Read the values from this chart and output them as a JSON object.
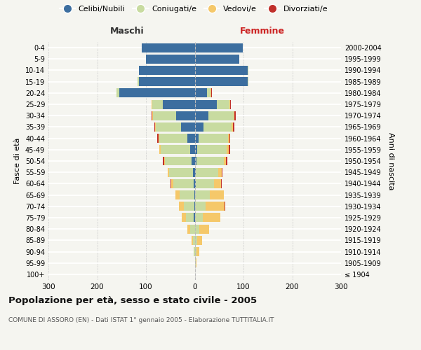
{
  "age_groups": [
    "100+",
    "95-99",
    "90-94",
    "85-89",
    "80-84",
    "75-79",
    "70-74",
    "65-69",
    "60-64",
    "55-59",
    "50-54",
    "45-49",
    "40-44",
    "35-39",
    "30-34",
    "25-29",
    "20-24",
    "15-19",
    "10-14",
    "5-9",
    "0-4"
  ],
  "birth_years": [
    "≤ 1904",
    "1905-1909",
    "1910-1914",
    "1915-1919",
    "1920-1924",
    "1925-1929",
    "1930-1934",
    "1935-1939",
    "1940-1944",
    "1945-1949",
    "1950-1954",
    "1955-1959",
    "1960-1964",
    "1965-1969",
    "1970-1974",
    "1975-1979",
    "1980-1984",
    "1985-1989",
    "1990-1994",
    "1995-1999",
    "2000-2004"
  ],
  "male_celibi": [
    0,
    0,
    0,
    0,
    0,
    2,
    1,
    1,
    2,
    3,
    6,
    10,
    15,
    28,
    38,
    65,
    155,
    115,
    115,
    100,
    108
  ],
  "male_coniugati": [
    0,
    0,
    2,
    4,
    10,
    16,
    22,
    30,
    42,
    50,
    55,
    60,
    58,
    52,
    48,
    22,
    5,
    2,
    0,
    0,
    0
  ],
  "male_vedovi": [
    0,
    0,
    0,
    2,
    5,
    9,
    10,
    8,
    4,
    2,
    2,
    2,
    1,
    1,
    1,
    1,
    0,
    0,
    0,
    0,
    0
  ],
  "male_divorziati": [
    0,
    0,
    0,
    0,
    0,
    0,
    0,
    1,
    1,
    1,
    2,
    1,
    3,
    2,
    2,
    1,
    0,
    0,
    0,
    0,
    0
  ],
  "fem_nubili": [
    0,
    0,
    0,
    0,
    1,
    1,
    1,
    1,
    2,
    2,
    4,
    5,
    8,
    18,
    28,
    45,
    25,
    108,
    108,
    92,
    98
  ],
  "fem_coniugate": [
    0,
    2,
    4,
    5,
    9,
    16,
    22,
    30,
    38,
    46,
    55,
    60,
    60,
    58,
    52,
    26,
    8,
    2,
    2,
    0,
    0
  ],
  "fem_vedove": [
    0,
    2,
    6,
    10,
    20,
    35,
    38,
    28,
    14,
    8,
    5,
    5,
    3,
    2,
    2,
    2,
    1,
    0,
    0,
    0,
    0
  ],
  "fem_divorziate": [
    0,
    0,
    0,
    0,
    0,
    0,
    1,
    0,
    1,
    1,
    3,
    3,
    2,
    3,
    2,
    1,
    1,
    0,
    0,
    0,
    0
  ],
  "color_cel": "#3c6e9f",
  "color_con": "#c8dba0",
  "color_ved": "#f5c86a",
  "color_div": "#c0302a",
  "legend_labels": [
    "Celibi/Nubili",
    "Coniugati/e",
    "Vedovi/e",
    "Divorziati/e"
  ],
  "title": "Popolazione per età, sesso e stato civile - 2005",
  "subtitle": "COMUNE DI ASSORO (EN) - Dati ISTAT 1° gennaio 2005 - Elaborazione TUTTITALIA.IT",
  "label_maschi": "Maschi",
  "label_femmine": "Femmine",
  "ylabel_left": "Fasce di età",
  "ylabel_right": "Anni di nascita",
  "xlim": 300,
  "bg_color": "#f5f5f0"
}
